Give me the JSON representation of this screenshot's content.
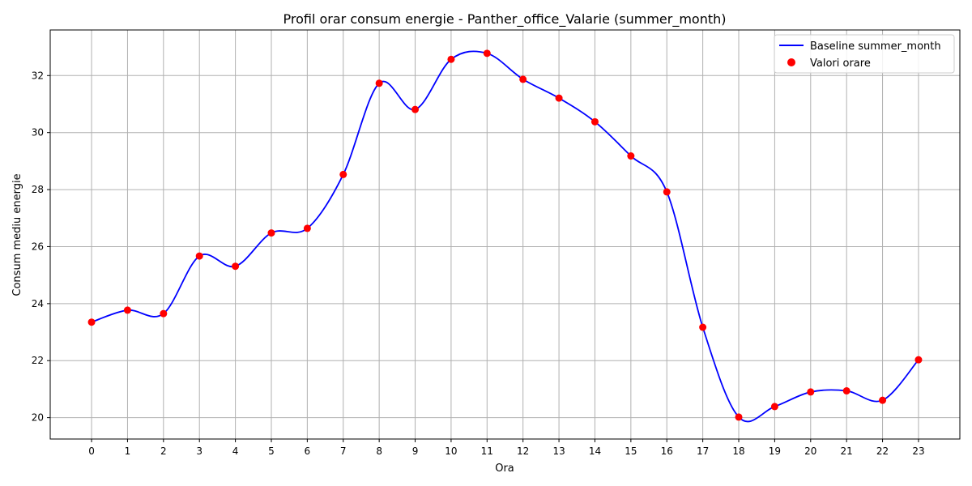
{
  "chart_data": {
    "type": "line",
    "title": "Profil orar consum energie - Panther_office_Valarie (summer_month)",
    "xlabel": "Ora",
    "ylabel": "Consum mediu energie",
    "x": [
      0,
      1,
      2,
      3,
      4,
      5,
      6,
      7,
      8,
      9,
      10,
      11,
      12,
      13,
      14,
      15,
      16,
      17,
      18,
      19,
      20,
      21,
      22,
      23
    ],
    "x_tick_labels": [
      "0",
      "1",
      "2",
      "3",
      "4",
      "5",
      "6",
      "7",
      "8",
      "9",
      "10",
      "11",
      "12",
      "13",
      "14",
      "15",
      "16",
      "17",
      "18",
      "19",
      "20",
      "21",
      "22",
      "23"
    ],
    "y_ticks": [
      20,
      22,
      24,
      26,
      28,
      30,
      32
    ],
    "y_tick_labels": [
      "20",
      "22",
      "24",
      "26",
      "28",
      "30",
      "32"
    ],
    "xlim": [
      -1.15,
      24.15
    ],
    "ylim": [
      19.25,
      33.6
    ],
    "grid": true,
    "legend_position": "top-right",
    "series": [
      {
        "name": "Baseline summer_month",
        "kind": "line",
        "color": "#0000ff",
        "values": [
          23.35,
          23.77,
          23.65,
          25.67,
          25.31,
          26.48,
          26.64,
          28.53,
          31.73,
          30.81,
          32.57,
          32.78,
          31.87,
          31.21,
          30.38,
          29.18,
          27.92,
          23.17,
          20.02,
          20.39,
          20.9,
          20.94,
          20.61,
          22.03
        ]
      },
      {
        "name": "Valori orare",
        "kind": "scatter",
        "color": "#ff0000",
        "values": [
          23.35,
          23.77,
          23.65,
          25.67,
          25.31,
          26.48,
          26.64,
          28.53,
          31.73,
          30.81,
          32.57,
          32.78,
          31.87,
          31.21,
          30.38,
          29.18,
          27.92,
          23.17,
          20.02,
          20.39,
          20.9,
          20.94,
          20.61,
          22.03
        ]
      }
    ]
  }
}
